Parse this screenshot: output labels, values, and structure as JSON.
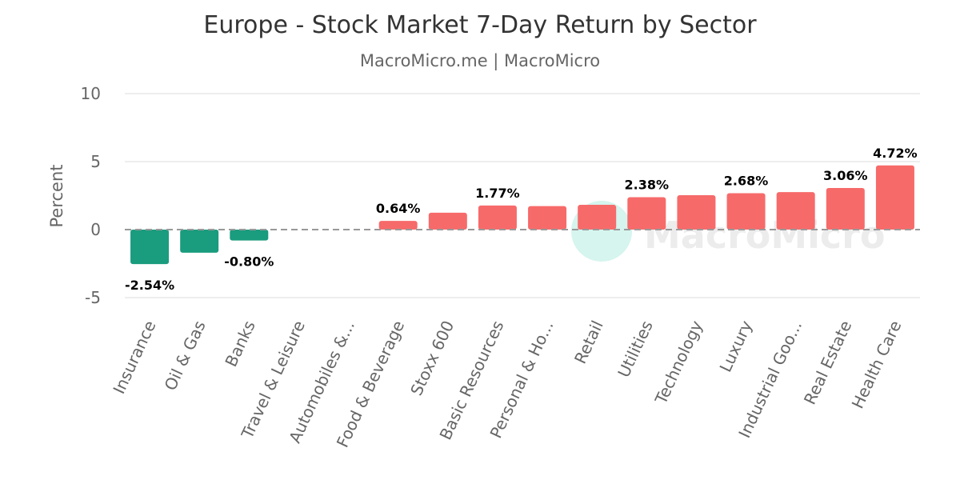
{
  "chart_data": {
    "type": "bar",
    "title": "Europe - Stock Market 7-Day Return by Sector",
    "subtitle": "MacroMicro.me | MacroMicro",
    "ylabel": "Percent",
    "ylim": [
      -5,
      10
    ],
    "yticks": [
      10,
      5,
      0,
      -5
    ],
    "grid": true,
    "categories": [
      "Insurance",
      "Oil & Gas",
      "Banks",
      "Travel & Leisure",
      "Automobiles &...",
      "Food & Beverage",
      "Stoxx 600",
      "Basic Resources",
      "Personal & Ho...",
      "Retail",
      "Utilities",
      "Technology",
      "Luxury",
      "Industrial Goo...",
      "Real Estate",
      "Health Care"
    ],
    "values": [
      -2.54,
      -1.7,
      -0.8,
      null,
      null,
      0.64,
      1.24,
      1.77,
      1.73,
      1.82,
      2.38,
      2.53,
      2.68,
      2.76,
      3.06,
      4.72
    ],
    "data_labels": [
      "-2.54%",
      "",
      "-0.80%",
      "",
      "",
      "0.64%",
      "",
      "1.77%",
      "",
      "",
      "2.38%",
      "",
      "2.68%",
      "",
      "3.06%",
      "4.72%"
    ],
    "colors": {
      "positive": "#f76a6a",
      "negative": "#1a9c7e"
    },
    "watermark": "MacroMicro"
  }
}
